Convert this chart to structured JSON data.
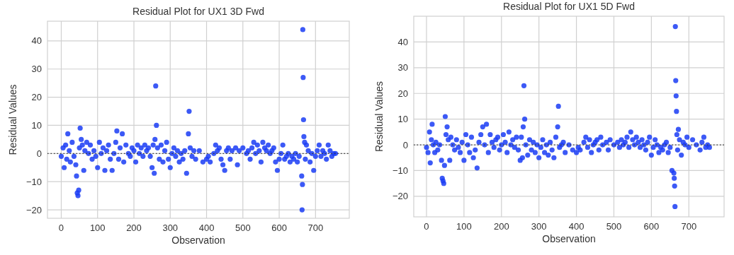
{
  "chart_data": [
    {
      "type": "scatter",
      "title": "Residual Plot for UX1 3D Fwd",
      "xlabel": "Observation",
      "ylabel": "Residual Values",
      "xlim": [
        -38,
        793
      ],
      "ylim": [
        -23,
        47
      ],
      "xticks": [
        0,
        100,
        200,
        300,
        400,
        500,
        600,
        700
      ],
      "yticks": [
        -20,
        -10,
        0,
        10,
        20,
        30,
        40
      ],
      "grid": true,
      "marker": "circle",
      "ref_lines": [
        {
          "axis": "y",
          "value": 0,
          "color": "#333333",
          "line_style": "dotted"
        }
      ],
      "series": [
        {
          "color": "#1a3cf5",
          "x": [
            0,
            5,
            8,
            12,
            15,
            18,
            22,
            25,
            30,
            35,
            40,
            42,
            44,
            46,
            48,
            50,
            52,
            55,
            58,
            62,
            65,
            70,
            75,
            80,
            85,
            90,
            95,
            100,
            105,
            110,
            115,
            120,
            125,
            130,
            135,
            140,
            145,
            150,
            153,
            158,
            162,
            168,
            172,
            178,
            185,
            190,
            195,
            200,
            205,
            210,
            215,
            220,
            225,
            230,
            235,
            240,
            245,
            250,
            253,
            256,
            258,
            260,
            262,
            265,
            270,
            275,
            280,
            285,
            290,
            295,
            300,
            305,
            310,
            315,
            320,
            325,
            330,
            335,
            340,
            345,
            350,
            352,
            355,
            360,
            365,
            370,
            380,
            390,
            400,
            405,
            410,
            420,
            425,
            430,
            435,
            440,
            445,
            450,
            455,
            460,
            465,
            470,
            480,
            485,
            490,
            500,
            510,
            515,
            520,
            525,
            530,
            535,
            540,
            545,
            550,
            555,
            560,
            565,
            570,
            575,
            580,
            585,
            590,
            595,
            600,
            605,
            610,
            615,
            620,
            625,
            630,
            635,
            640,
            645,
            650,
            655,
            662,
            664,
            663,
            665,
            666,
            667,
            668,
            670,
            672,
            675,
            680,
            685,
            690,
            695,
            700,
            705,
            710,
            715,
            720,
            725,
            730,
            735,
            740,
            745,
            750,
            755
          ],
          "values": [
            -1,
            2,
            -5,
            3,
            -2,
            7,
            1,
            -3,
            4,
            -1,
            -4,
            -8,
            -14,
            -15,
            -13,
            2,
            9,
            5,
            3,
            -6,
            1,
            4,
            0,
            3,
            -2,
            1,
            -1,
            -5,
            4,
            0,
            2,
            -6,
            1,
            3,
            -2,
            -6,
            0,
            4,
            8,
            -2,
            2,
            7,
            -3,
            3,
            0,
            -1,
            2,
            1,
            -3,
            3,
            0,
            2,
            -1,
            3,
            1,
            2,
            -1,
            -5,
            3,
            -7,
            5,
            24,
            10,
            2,
            -2,
            3,
            -3,
            1,
            4,
            -2,
            -5,
            0,
            2,
            -1,
            1,
            -3,
            0,
            -2,
            1,
            -7,
            7,
            15,
            2,
            -1,
            1,
            -2,
            1,
            -3,
            -2,
            -1,
            -3,
            0,
            3,
            1,
            2,
            -2,
            -4,
            -6,
            1,
            2,
            -2,
            1,
            2,
            -4,
            1,
            2,
            0,
            1,
            -2,
            2,
            4,
            0,
            3,
            1,
            -3,
            4,
            2,
            1,
            3,
            0,
            1,
            2,
            -3,
            -6,
            -2,
            0,
            3,
            -2,
            -1,
            0,
            -3,
            -1,
            -2,
            0,
            -3,
            -1,
            -8,
            -11,
            -20,
            44,
            27,
            12,
            6,
            4,
            -2,
            3,
            1,
            -3,
            0,
            -6,
            -1,
            1,
            3,
            -1,
            1,
            0,
            -2,
            3,
            1,
            -1,
            0,
            0
          ]
        }
      ]
    },
    {
      "type": "scatter",
      "title": "Residual Plot for UX1 5D Fwd",
      "xlabel": "Observation",
      "ylabel": "Residual Values",
      "xlim": [
        -34,
        794
      ],
      "ylim": [
        -28,
        50
      ],
      "xticks": [
        0,
        100,
        200,
        300,
        400,
        500,
        600,
        700
      ],
      "yticks": [
        -20,
        -10,
        0,
        10,
        20,
        30,
        40
      ],
      "grid": true,
      "marker": "circle",
      "ref_lines": [
        {
          "axis": "y",
          "value": 0,
          "color": "#333333",
          "line_style": "dotted"
        }
      ],
      "series": [
        {
          "color": "#1a3cf5",
          "x": [
            0,
            4,
            8,
            10,
            13,
            15,
            18,
            22,
            25,
            30,
            35,
            40,
            42,
            44,
            46,
            48,
            50,
            52,
            55,
            58,
            62,
            65,
            70,
            75,
            80,
            85,
            90,
            95,
            100,
            105,
            110,
            115,
            120,
            125,
            130,
            135,
            140,
            145,
            150,
            155,
            160,
            165,
            170,
            175,
            180,
            185,
            190,
            195,
            200,
            205,
            210,
            215,
            220,
            225,
            230,
            235,
            240,
            245,
            250,
            253,
            256,
            258,
            260,
            262,
            265,
            270,
            275,
            280,
            285,
            290,
            295,
            300,
            305,
            310,
            315,
            320,
            325,
            330,
            335,
            340,
            345,
            350,
            352,
            355,
            360,
            365,
            370,
            380,
            390,
            400,
            405,
            410,
            420,
            425,
            430,
            435,
            440,
            445,
            450,
            455,
            460,
            465,
            470,
            480,
            485,
            490,
            500,
            510,
            515,
            520,
            525,
            530,
            535,
            540,
            545,
            550,
            555,
            560,
            565,
            570,
            575,
            580,
            585,
            590,
            595,
            600,
            605,
            610,
            615,
            620,
            625,
            630,
            635,
            640,
            645,
            650,
            655,
            660,
            661,
            662,
            663,
            664,
            665,
            666,
            667,
            668,
            670,
            672,
            675,
            680,
            685,
            690,
            695,
            700,
            710,
            720,
            730,
            735,
            740,
            745,
            750,
            755
          ],
          "values": [
            -1,
            -3,
            5,
            -7,
            2,
            8,
            0,
            -3,
            1,
            -2,
            0,
            -6,
            -13,
            -14,
            -15,
            -8,
            11,
            4,
            7,
            2,
            -6,
            3,
            0,
            -2,
            2,
            -1,
            -3,
            1,
            -6,
            4,
            0,
            -3,
            3,
            -5,
            -2,
            -9,
            1,
            4,
            7,
            0,
            8,
            -3,
            4,
            1,
            -1,
            2,
            3,
            -2,
            0,
            4,
            1,
            -3,
            5,
            0,
            2,
            -1,
            3,
            -2,
            -6,
            3,
            -5,
            7,
            23,
            10,
            0,
            -4,
            2,
            -2,
            1,
            -3,
            0,
            -5,
            -1,
            2,
            -3,
            0,
            -4,
            1,
            -2,
            -5,
            3,
            7,
            15,
            -1,
            0,
            1,
            -3,
            0,
            -2,
            -3,
            -1,
            -2,
            1,
            3,
            -1,
            2,
            -3,
            0,
            1,
            2,
            -2,
            3,
            0,
            1,
            -2,
            2,
            0,
            1,
            -1,
            2,
            0,
            1,
            3,
            -1,
            5,
            2,
            0,
            3,
            1,
            -1,
            2,
            0,
            -2,
            1,
            3,
            -4,
            -1,
            2,
            0,
            -3,
            -1,
            -2,
            0,
            1,
            -3,
            -1,
            -10,
            -11,
            -13,
            -16,
            -24,
            46,
            25,
            19,
            13,
            4,
            -2,
            6,
            2,
            -4,
            1,
            0,
            3,
            -1,
            2,
            0,
            -2,
            1,
            3,
            -1,
            0,
            -1
          ]
        }
      ]
    }
  ]
}
